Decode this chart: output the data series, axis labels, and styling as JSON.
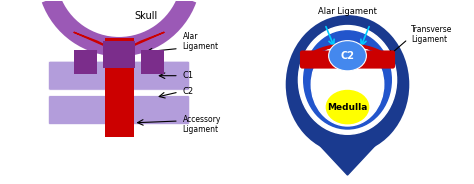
{
  "bg_color": "#ffffff",
  "left_panel": {
    "skull_color": "#9b59b6",
    "c1_color": "#b39ddb",
    "c2_color": "#b39ddb",
    "ligament_red": "#cc0000",
    "ligament_purple": "#7b2d8b",
    "skull_label": "Skull",
    "alar_label": "Alar\nLigament",
    "c1_label": "C1",
    "c2_label": "C2",
    "accessory_label": "Accessory\nLigament"
  },
  "right_panel": {
    "outer_ring_color": "#1a3a8f",
    "inner_bg_color": "#2255cc",
    "c2_circle_color": "#4488ee",
    "c2_text": "C2",
    "medulla_color": "#ffff00",
    "medulla_text": "Medulla",
    "red_ligament": "#cc0000",
    "alar_label": "Alar Ligament",
    "transverse_label": "Transverse\nLigament",
    "arrow_color": "#00ccff"
  }
}
